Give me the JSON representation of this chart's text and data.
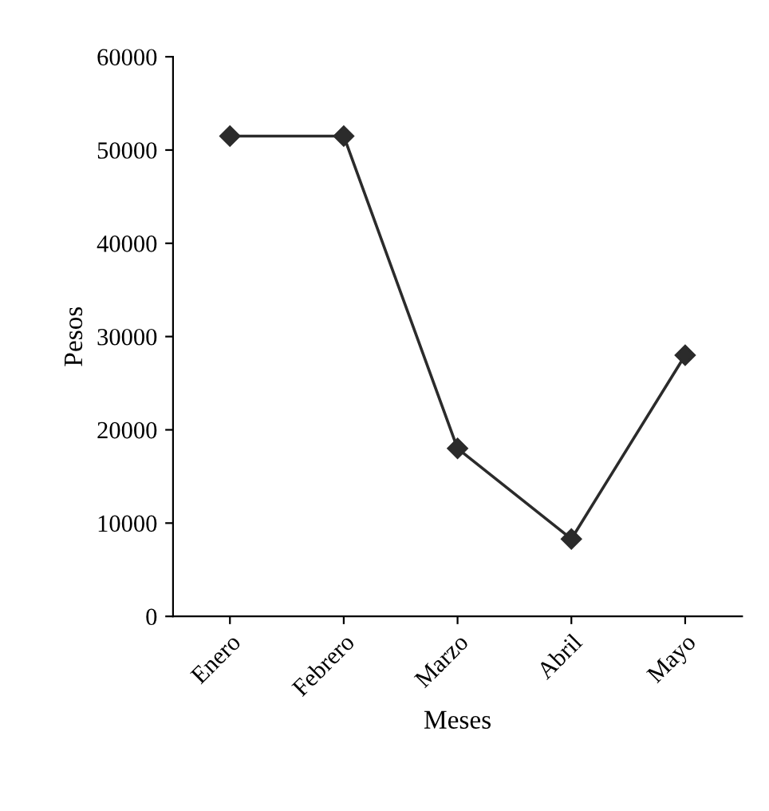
{
  "chart_data": {
    "type": "line",
    "xlabel": "Meses",
    "ylabel": "Pesos",
    "categories": [
      "Enero",
      "Febrero",
      "Marzo",
      "Abril",
      "Mayo"
    ],
    "series": [
      {
        "color": "#2b2b2b",
        "values": [
          51500,
          51500,
          18000,
          8300,
          28000
        ]
      }
    ],
    "ylim": [
      0,
      60000
    ],
    "yticks": [
      0,
      10000,
      20000,
      30000,
      40000,
      50000,
      60000
    ],
    "marker": "diamond",
    "line_style": "solid"
  }
}
